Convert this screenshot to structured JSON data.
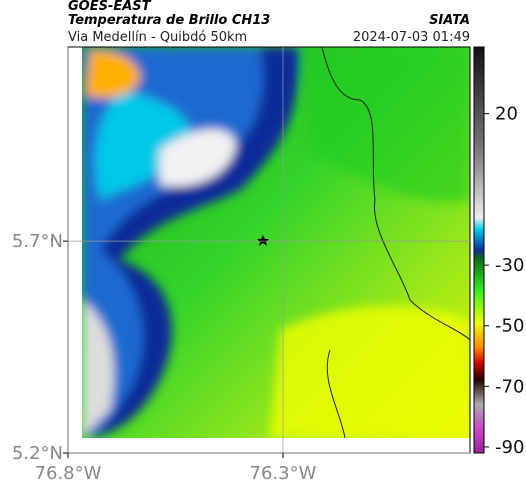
{
  "header": {
    "title": "GOES-EAST",
    "subtitle": "Temperatura de Brillo CH13",
    "source": "SIATA",
    "region": "Via Medellín - Quibdó 50km",
    "timestamp": "2024-07-03 01:49"
  },
  "map": {
    "lat_range": [
      5.2,
      6.158
    ],
    "lon_range": [
      -76.8,
      -75.865
    ],
    "lat_ticks": [
      {
        "value": 5.7,
        "label": "5.7°N"
      },
      {
        "value": 5.2,
        "label": "5.2°N"
      }
    ],
    "lon_ticks": [
      {
        "value": -76.8,
        "label": "76.8°W"
      },
      {
        "value": -76.3,
        "label": "76.3°W"
      }
    ]
  },
  "colorbar": {
    "range": [
      -92,
      42
    ],
    "ticks": [
      20,
      -30,
      -50,
      -70,
      -90
    ]
  }
}
